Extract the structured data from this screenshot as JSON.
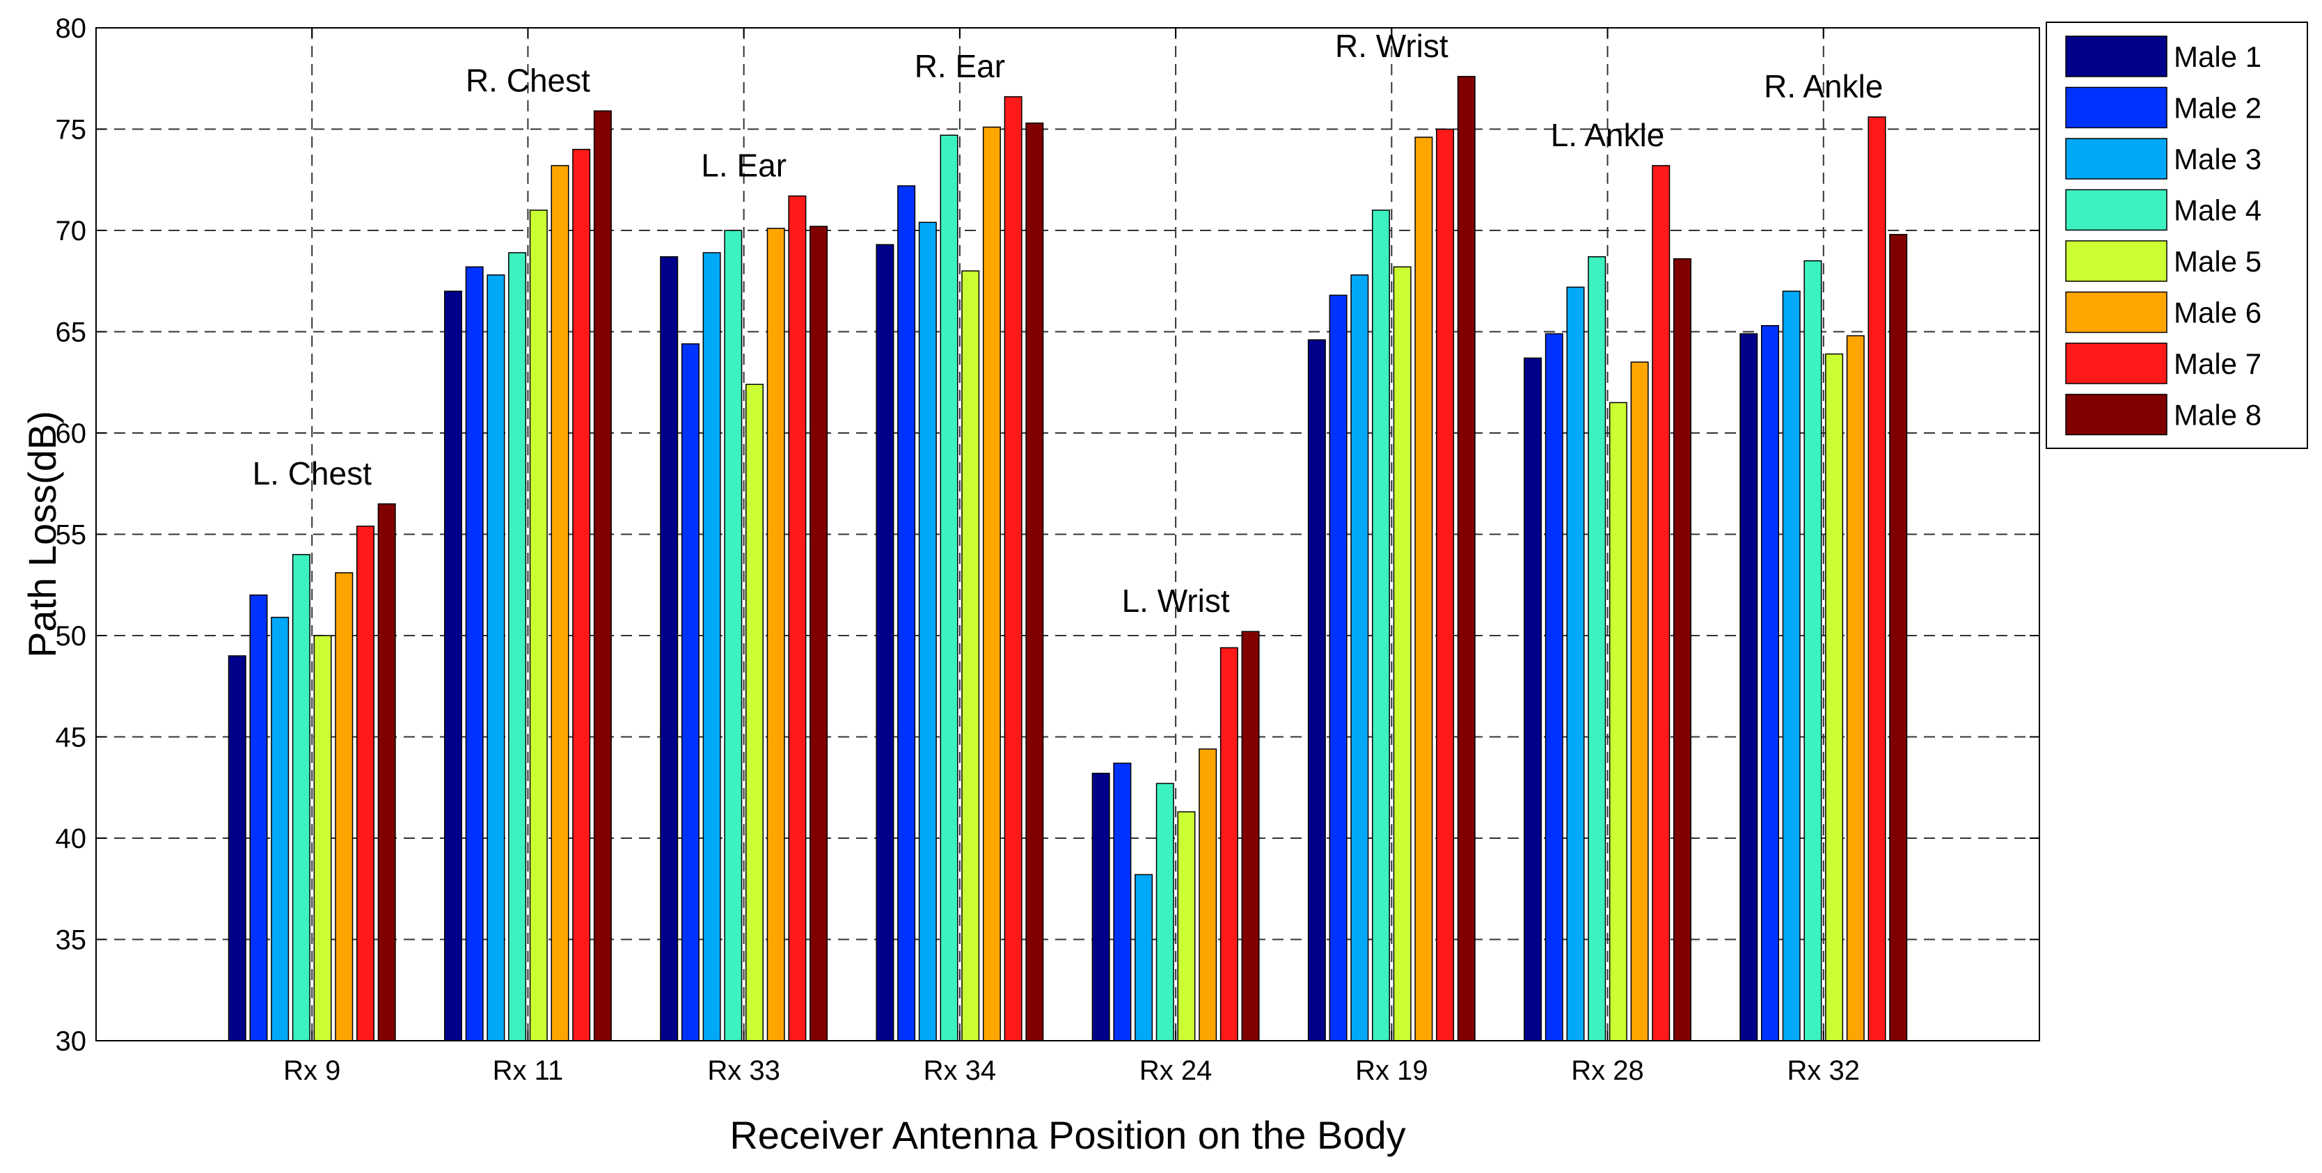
{
  "chart_data": {
    "type": "bar",
    "title": "",
    "xlabel": "Receiver Antenna Position on the Body",
    "ylabel": "Path Loss(dB)",
    "ylim": [
      30,
      80
    ],
    "yticks": [
      30,
      35,
      40,
      45,
      50,
      55,
      60,
      65,
      70,
      75,
      80
    ],
    "grid": true,
    "legend_position": "top-right-outside",
    "categories": [
      "Rx 9",
      "Rx 11",
      "Rx 33",
      "Rx 34",
      "Rx 24",
      "Rx 19",
      "Rx 28",
      "Rx 32"
    ],
    "annotations": [
      "L. Chest",
      "R. Chest",
      "L. Ear",
      "R. Ear",
      "L. Wrist",
      "R. Wrist",
      "L. Ankle",
      "R. Ankle"
    ],
    "series": [
      {
        "name": "Male 1",
        "color": "#00008B",
        "values": [
          49.0,
          67.0,
          68.7,
          69.3,
          43.2,
          64.6,
          63.7,
          64.9
        ]
      },
      {
        "name": "Male 2",
        "color": "#0033FF",
        "values": [
          52.0,
          68.2,
          64.4,
          72.2,
          43.7,
          66.8,
          64.9,
          65.3
        ]
      },
      {
        "name": "Male 3",
        "color": "#00A8F8",
        "values": [
          50.9,
          67.8,
          68.9,
          70.4,
          38.2,
          67.8,
          67.2,
          67.0
        ]
      },
      {
        "name": "Male 4",
        "color": "#3CF2C0",
        "values": [
          54.0,
          68.9,
          70.0,
          74.7,
          42.7,
          71.0,
          68.7,
          68.5
        ]
      },
      {
        "name": "Male 5",
        "color": "#CCFF33",
        "values": [
          50.0,
          71.0,
          62.4,
          68.0,
          41.3,
          68.2,
          61.5,
          63.9
        ]
      },
      {
        "name": "Male 6",
        "color": "#FFA500",
        "values": [
          53.1,
          73.2,
          70.1,
          75.1,
          44.4,
          74.6,
          63.5,
          64.8
        ]
      },
      {
        "name": "Male 7",
        "color": "#FF1A1A",
        "values": [
          55.4,
          74.0,
          71.7,
          76.6,
          49.4,
          75.0,
          73.2,
          75.6
        ]
      },
      {
        "name": "Male 8",
        "color": "#800000",
        "values": [
          56.5,
          75.9,
          70.2,
          75.3,
          50.2,
          77.6,
          68.6,
          69.8
        ]
      }
    ]
  }
}
